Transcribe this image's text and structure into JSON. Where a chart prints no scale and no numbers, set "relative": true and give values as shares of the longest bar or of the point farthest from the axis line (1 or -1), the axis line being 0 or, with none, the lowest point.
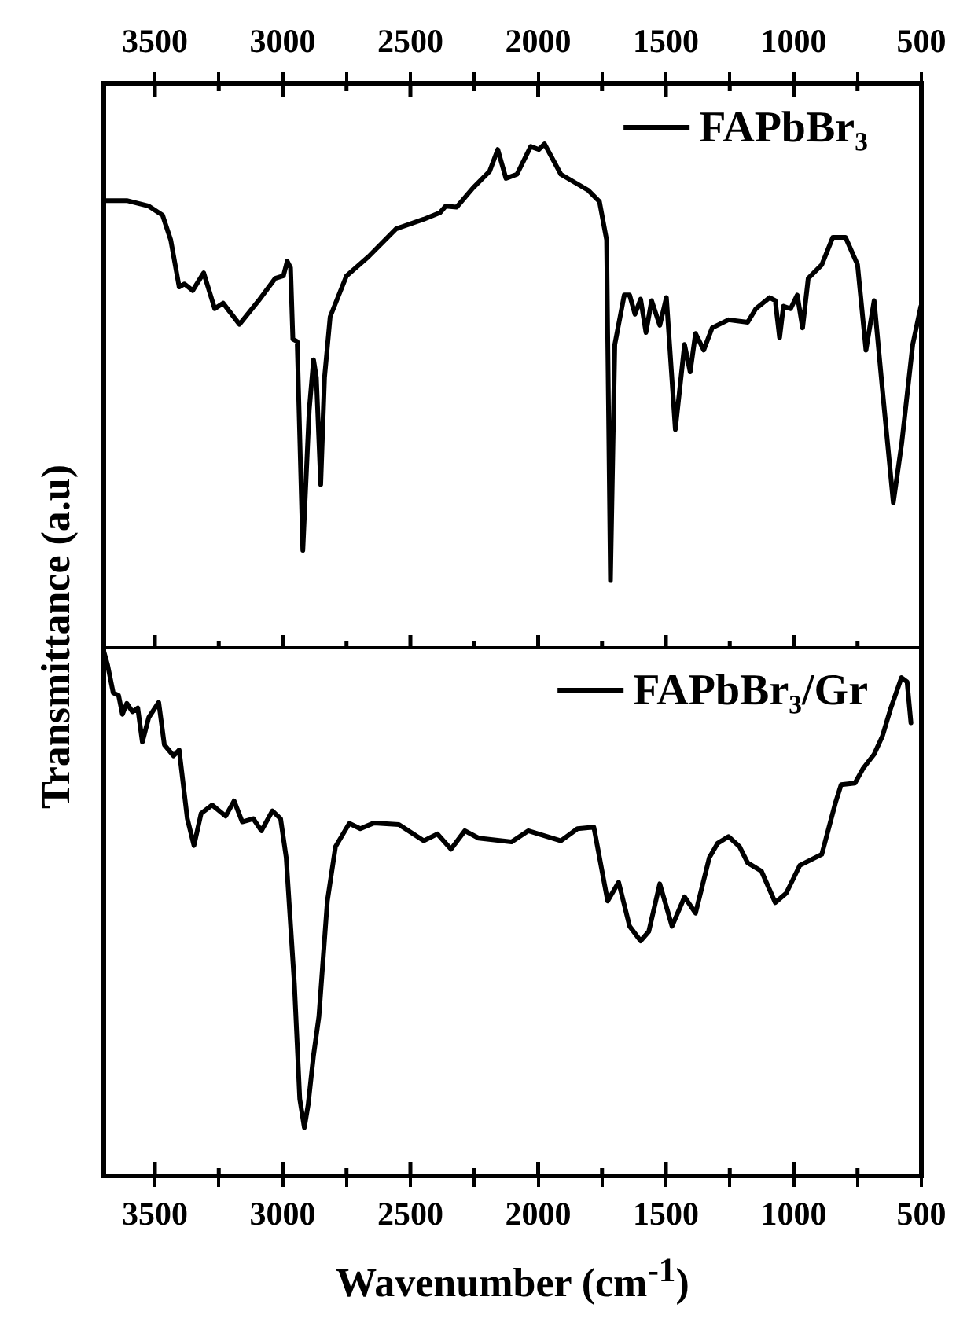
{
  "chart_data": [
    {
      "type": "line",
      "relative": true,
      "ylabel": "Transmittance (a.u)",
      "legend": "top right",
      "tick_labels": "x",
      "marker": "none",
      "line_style": "solid",
      "grid": false,
      "xlim": [
        3700,
        500
      ],
      "xticks": [
        3500,
        {
          "value": 3250,
          "label": null
        },
        3000,
        {
          "value": 2750,
          "label": null
        },
        2500,
        {
          "value": 2250,
          "label": null
        },
        2000,
        {
          "value": 1750,
          "label": null
        },
        1500,
        {
          "value": 1250,
          "label": null
        },
        1000,
        {
          "value": 750,
          "label": null
        },
        500
      ],
      "series": [
        {
          "name": "FAPbBr₃",
          "color": "#000000",
          "x": [
            3700,
            3610,
            3524,
            3470,
            3438,
            3405,
            3384,
            3352,
            3309,
            3266,
            3233,
            3169,
            3094,
            3029,
            2997,
            2982,
            2969,
            2960,
            2943,
            2921,
            2896,
            2879,
            2868,
            2851,
            2836,
            2814,
            2750,
            2664,
            2556,
            2448,
            2384,
            2362,
            2319,
            2255,
            2190,
            2158,
            2126,
            2083,
            2029,
            1997,
            1975,
            1911,
            1803,
            1760,
            1732,
            1717,
            1700,
            1663,
            1642,
            1621,
            1599,
            1578,
            1556,
            1524,
            1498,
            1463,
            1427,
            1405,
            1384,
            1352,
            1319,
            1255,
            1180,
            1148,
            1094,
            1072,
            1055,
            1040,
            1012,
            986,
            965,
            943,
            890,
            847,
            797,
            750,
            717,
            685,
            653,
            610,
            577,
            534,
            502
          ],
          "values": [
            0.888,
            0.888,
            0.877,
            0.859,
            0.81,
            0.717,
            0.723,
            0.71,
            0.745,
            0.674,
            0.685,
            0.643,
            0.69,
            0.734,
            0.739,
            0.768,
            0.755,
            0.614,
            0.609,
            0.196,
            0.473,
            0.573,
            0.538,
            0.326,
            0.538,
            0.658,
            0.739,
            0.777,
            0.832,
            0.851,
            0.864,
            0.877,
            0.875,
            0.913,
            0.946,
            0.989,
            0.932,
            0.94,
            0.995,
            0.989,
            1.0,
            0.94,
            0.908,
            0.886,
            0.81,
            0.136,
            0.603,
            0.701,
            0.701,
            0.663,
            0.693,
            0.627,
            0.69,
            0.641,
            0.696,
            0.435,
            0.603,
            0.549,
            0.625,
            0.592,
            0.636,
            0.652,
            0.647,
            0.674,
            0.696,
            0.69,
            0.616,
            0.679,
            0.674,
            0.701,
            0.636,
            0.734,
            0.761,
            0.815,
            0.815,
            0.761,
            0.592,
            0.69,
            0.516,
            0.29,
            0.408,
            0.603,
            0.679
          ]
        }
      ]
    },
    {
      "type": "line",
      "relative": true,
      "xlabel": "Wavenumber (cm$^{-1}$)",
      "legend": "top right",
      "tick_labels": "x",
      "marker": "none",
      "line_style": "solid",
      "grid": false,
      "xlim": [
        3700,
        500
      ],
      "xticks": [
        3500,
        {
          "value": 3250,
          "label": null
        },
        3000,
        {
          "value": 2750,
          "label": null
        },
        2500,
        {
          "value": 2250,
          "label": null
        },
        2000,
        {
          "value": 1750,
          "label": null
        },
        1500,
        {
          "value": 1250,
          "label": null
        },
        1000,
        {
          "value": 750,
          "label": null
        },
        500
      ],
      "series": [
        {
          "name": "FAPbBr₃/Gr",
          "color": "#000000",
          "x": [
            3700,
            3685,
            3663,
            3642,
            3627,
            3610,
            3588,
            3567,
            3549,
            3524,
            3485,
            3463,
            3427,
            3405,
            3373,
            3347,
            3319,
            3276,
            3223,
            3190,
            3158,
            3115,
            3083,
            3040,
            3008,
            2986,
            2954,
            2933,
            2915,
            2900,
            2879,
            2858,
            2825,
            2793,
            2739,
            2696,
            2642,
            2545,
            2448,
            2394,
            2341,
            2287,
            2233,
            2104,
            2039,
            1911,
            1846,
            1782,
            1728,
            1685,
            1642,
            1599,
            1567,
            1524,
            1476,
            1427,
            1384,
            1330,
            1298,
            1255,
            1212,
            1180,
            1126,
            1072,
            1029,
            976,
            890,
            836,
            814,
            760,
            728,
            685,
            653,
            621,
            578,
            556,
            541
          ],
          "values": [
            1.0,
            0.974,
            0.921,
            0.916,
            0.88,
            0.901,
            0.885,
            0.892,
            0.827,
            0.874,
            0.903,
            0.822,
            0.801,
            0.812,
            0.681,
            0.63,
            0.691,
            0.707,
            0.686,
            0.715,
            0.675,
            0.681,
            0.658,
            0.696,
            0.681,
            0.607,
            0.366,
            0.147,
            0.092,
            0.136,
            0.23,
            0.304,
            0.524,
            0.628,
            0.672,
            0.662,
            0.673,
            0.67,
            0.639,
            0.652,
            0.623,
            0.658,
            0.644,
            0.637,
            0.658,
            0.639,
            0.662,
            0.665,
            0.524,
            0.56,
            0.476,
            0.448,
            0.466,
            0.557,
            0.476,
            0.532,
            0.501,
            0.607,
            0.634,
            0.647,
            0.628,
            0.597,
            0.581,
            0.521,
            0.539,
            0.592,
            0.613,
            0.712,
            0.746,
            0.749,
            0.777,
            0.804,
            0.838,
            0.89,
            0.95,
            0.942,
            0.864
          ]
        }
      ]
    }
  ]
}
